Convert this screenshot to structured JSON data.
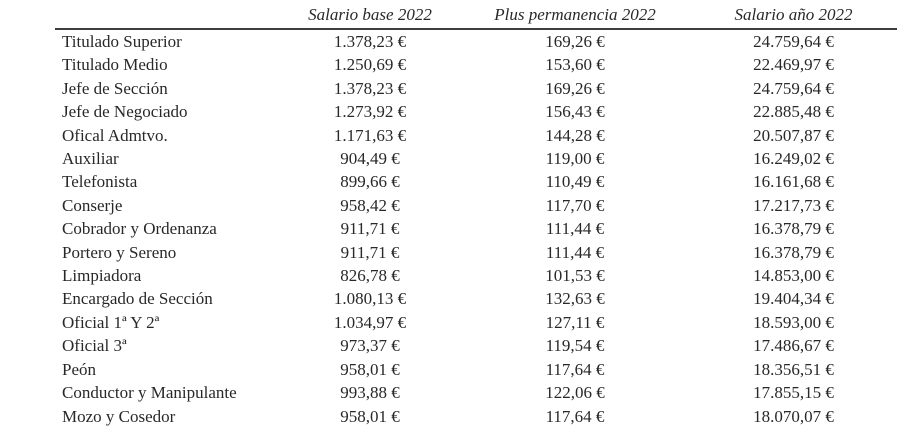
{
  "page": {
    "background": "#ffffff",
    "text_color": "#282828",
    "rule_color": "#3d3d3d"
  },
  "table": {
    "columns": [
      "",
      "Salario base 2022",
      "Plus permanencia 2022",
      "Salario año 2022"
    ],
    "rows": [
      {
        "label": "Titulado Superior",
        "base": "1.378,23 €",
        "plus": "169,26 €",
        "anual": "24.759,64 €"
      },
      {
        "label": "Titulado Medio",
        "base": "1.250,69 €",
        "plus": "153,60 €",
        "anual": "22.469,97 €"
      },
      {
        "label": "Jefe de Sección",
        "base": "1.378,23 €",
        "plus": "169,26 €",
        "anual": "24.759,64 €"
      },
      {
        "label": "Jefe de Negociado",
        "base": "1.273,92 €",
        "plus": "156,43 €",
        "anual": "22.885,48 €"
      },
      {
        "label": "Ofical Admtvo.",
        "base": "1.171,63 €",
        "plus": "144,28 €",
        "anual": "20.507,87 €"
      },
      {
        "label": "Auxiliar",
        "base": "904,49 €",
        "plus": "119,00 €",
        "anual": "16.249,02 €"
      },
      {
        "label": "Telefonista",
        "base": "899,66 €",
        "plus": "110,49 €",
        "anual": "16.161,68 €"
      },
      {
        "label": "Conserje",
        "base": "958,42 €",
        "plus": "117,70 €",
        "anual": "17.217,73 €"
      },
      {
        "label": "Cobrador y Ordenanza",
        "base": "911,71 €",
        "plus": "111,44 €",
        "anual": "16.378,79 €"
      },
      {
        "label": "Portero y Sereno",
        "base": "911,71 €",
        "plus": "111,44 €",
        "anual": "16.378,79 €"
      },
      {
        "label": "Limpiadora",
        "base": "826,78 €",
        "plus": "101,53 €",
        "anual": "14.853,00 €"
      },
      {
        "label": "Encargado de Sección",
        "base": "1.080,13 €",
        "plus": "132,63 €",
        "anual": "19.404,34 €"
      },
      {
        "label": "Oficial 1ª Y 2ª",
        "base": "1.034,97 €",
        "plus": "127,11 €",
        "anual": "18.593,00 €"
      },
      {
        "label": "Oficial 3ª",
        "base": "973,37 €",
        "plus": "119,54 €",
        "anual": "17.486,67 €"
      },
      {
        "label": "Peón",
        "base": "958,01 €",
        "plus": "117,64 €",
        "anual": "18.356,51 €"
      },
      {
        "label": "Conductor y Manipulante",
        "base": "993,88 €",
        "plus": "122,06 €",
        "anual": "17.855,15 €"
      },
      {
        "label": "Mozo y Cosedor",
        "base": "958,01 €",
        "plus": "117,64 €",
        "anual": "18.070,07 €"
      }
    ]
  }
}
